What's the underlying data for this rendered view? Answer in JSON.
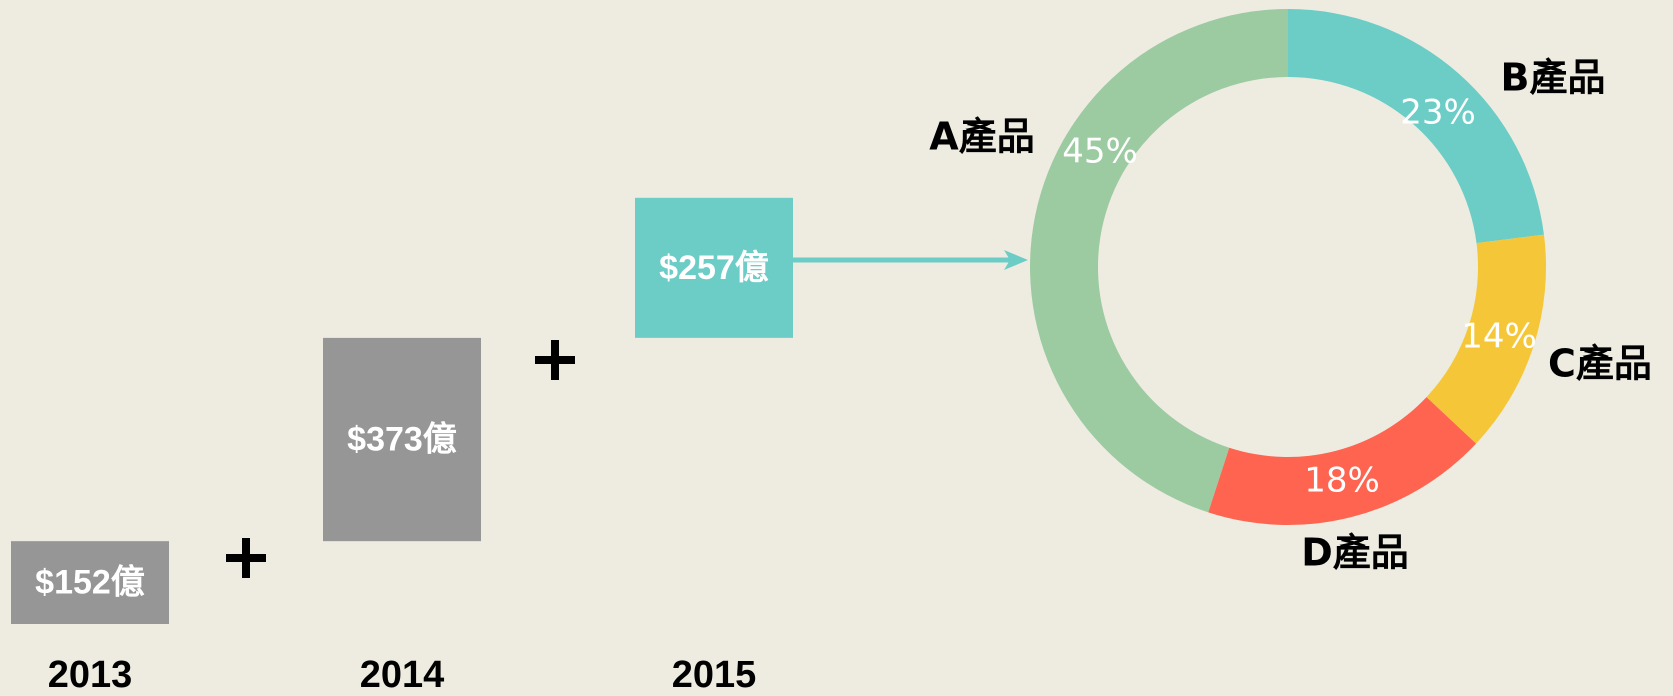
{
  "chart_data": [
    {
      "type": "waterfall",
      "categories": [
        "2013",
        "2014",
        "2015"
      ],
      "values": [
        152,
        373,
        257
      ],
      "value_labels": [
        "$152億",
        "$373億",
        "$257億"
      ],
      "colors": [
        "#969696",
        "#969696",
        "#6ccdc6"
      ]
    },
    {
      "type": "donut",
      "categories": [
        "A產品",
        "B產品",
        "C產品",
        "D產品"
      ],
      "values": [
        45,
        23,
        14,
        18
      ],
      "value_labels": [
        "45%",
        "23%",
        "14%",
        "18%"
      ],
      "colors": [
        "#9dcba1",
        "#6ccdc6",
        "#f5c738",
        "#fe6450"
      ]
    }
  ]
}
